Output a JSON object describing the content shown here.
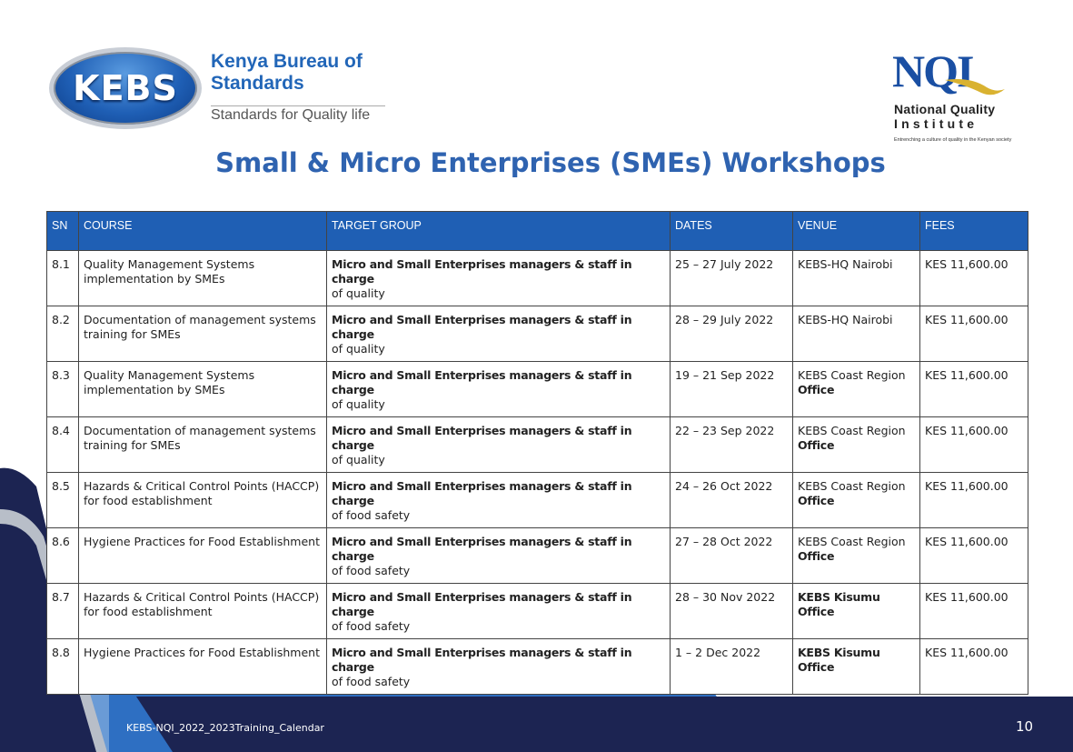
{
  "kebs_logo": {
    "emblem_text": "KEBS",
    "name_line1": "Kenya Bureau of",
    "name_line2": "Standards",
    "tagline": "Standards for Quality life"
  },
  "nqi_logo": {
    "emblem_text": "NQI",
    "name_line1": "National Quality",
    "name_line2": "Institute",
    "tagline": "Entrenching a culture of quality in the Kenyan society"
  },
  "page_title": "Small & Micro Enterprises (SMEs) Workshops",
  "table": {
    "headers": [
      "SN",
      "COURSE",
      "TARGET GROUP",
      "DATES",
      "VENUE",
      "FEES"
    ],
    "rows": [
      {
        "sn": "8.1",
        "course": "Quality Management Systems implementation by SMEs",
        "target_bold": "Micro and Small Enterprises managers & staff in charge",
        "target_rest": "of quality",
        "dates": "25 – 27 July 2022",
        "venue_main": "KEBS-HQ Nairobi",
        "venue_bold": "",
        "fees": "KES 11,600.00"
      },
      {
        "sn": "8.2",
        "course": "Documentation of management systems training for SMEs",
        "target_bold": "Micro and Small Enterprises managers & staff in charge",
        "target_rest": "of quality",
        "dates": "28 – 29 July 2022",
        "venue_main": "KEBS-HQ Nairobi",
        "venue_bold": "",
        "fees": "KES 11,600.00"
      },
      {
        "sn": "8.3",
        "course": "Quality Management Systems implementation by SMEs",
        "target_bold": "Micro and Small Enterprises managers & staff in charge",
        "target_rest": "of quality",
        "dates": "19 – 21 Sep 2022",
        "venue_main": "KEBS Coast Region",
        "venue_bold": "Office",
        "fees": "KES 11,600.00"
      },
      {
        "sn": "8.4",
        "course": "Documentation of management systems training for SMEs",
        "target_bold": "Micro and Small Enterprises managers & staff in charge",
        "target_rest": "of quality",
        "dates": "22 – 23 Sep 2022",
        "venue_main": "KEBS Coast Region",
        "venue_bold": "Office",
        "fees": "KES 11,600.00"
      },
      {
        "sn": "8.5",
        "course": "Hazards & Critical Control Points (HACCP) for food establishment",
        "target_bold": "Micro and Small Enterprises managers & staff in charge",
        "target_rest": "of food safety",
        "dates": "24 – 26 Oct 2022",
        "venue_main": "KEBS Coast Region",
        "venue_bold": "Office",
        "fees": "KES 11,600.00"
      },
      {
        "sn": "8.6",
        "course": "Hygiene Practices for Food Establishment",
        "target_bold": "Micro and Small Enterprises managers & staff in charge",
        "target_rest": "of food safety",
        "dates": "27 – 28 Oct 2022",
        "venue_main": "KEBS Coast Region",
        "venue_bold": "Office",
        "fees": "KES 11,600.00"
      },
      {
        "sn": "8.7",
        "course": "Hazards & Critical Control Points (HACCP) for food establishment",
        "target_bold": "Micro and Small Enterprises managers & staff in charge",
        "target_rest": "of food safety",
        "dates": "28 – 30 Nov 2022",
        "venue_main": "",
        "venue_bold": "KEBS Kisumu Office",
        "fees": "KES 11,600.00"
      },
      {
        "sn": "8.8",
        "course": "Hygiene Practices for Food Establishment",
        "target_bold": "Micro and Small Enterprises managers & staff in charge",
        "target_rest": "of food safety",
        "dates": "1 – 2 Dec 2022",
        "venue_main": "",
        "venue_bold": "KEBS Kisumu Office",
        "fees": "KES 11,600.00"
      }
    ]
  },
  "footer": {
    "document_name": "KEBS-NQI_2022_2023Training_Calendar",
    "page_number": "10"
  },
  "colors": {
    "brand_blue": "#1f5fb4",
    "title_blue": "#2f63b0",
    "navy": "#1c2452",
    "light_blue": "#a9c6e6"
  }
}
